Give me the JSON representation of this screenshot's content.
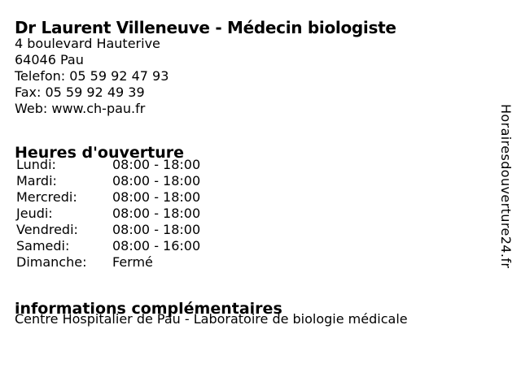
{
  "colors": {
    "background": "#ffffff",
    "text": "#000000"
  },
  "header": {
    "title": "Dr Laurent Villeneuve - Médecin biologiste",
    "address_line1": "4 boulevard Hauterive",
    "address_line2": "64046 Pau",
    "phone_line": "Telefon: 05 59 92 47 93",
    "fax_line": "Fax: 05 59 92 49 39",
    "web_label": "Web: ",
    "web_url": "www.ch-pau.fr"
  },
  "hours": {
    "heading": "Heures d'ouverture",
    "rows": [
      {
        "day": "Lundi:",
        "time": "08:00 - 18:00"
      },
      {
        "day": "Mardi:",
        "time": "08:00 - 18:00"
      },
      {
        "day": "Mercredi:",
        "time": "08:00 - 18:00"
      },
      {
        "day": "Jeudi:",
        "time": "08:00 - 18:00"
      },
      {
        "day": "Vendredi:",
        "time": "08:00 - 18:00"
      },
      {
        "day": "Samedi:",
        "time": "08:00 - 16:00"
      },
      {
        "day": "Dimanche:",
        "time": "Fermé"
      }
    ]
  },
  "extra": {
    "heading": "informations complémentaires",
    "text": "Centre Hospitalier de Pau - Laboratoire de biologie médicale"
  },
  "watermark": "Horairesdouverture24.fr"
}
